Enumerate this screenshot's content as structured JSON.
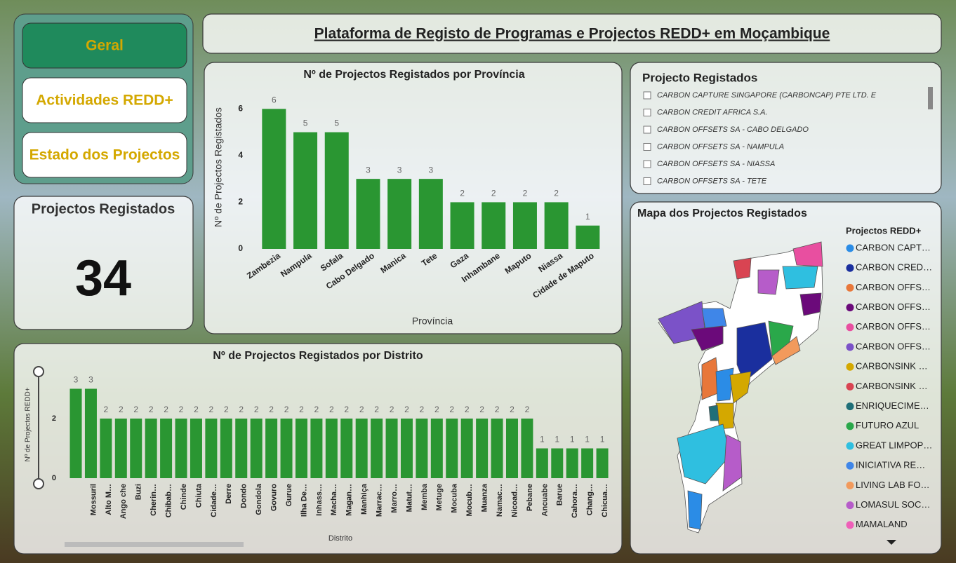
{
  "header": {
    "title": "Plataforma de Registo de Programas e Projectos REDD+ em Moçambique"
  },
  "nav": [
    "Geral",
    "Actividades REDD+",
    "Estado dos Projectos"
  ],
  "card": {
    "title": "Projectos Registados",
    "value": 34
  },
  "chart_data": [
    {
      "type": "bar",
      "title": "Nº de Projectos Registados por Província",
      "x_label": "Província",
      "y_label": "Nº de Projectos Registados",
      "categories": [
        "Zambezia",
        "Nampula",
        "Sofala",
        "Cabo Delgado",
        "Manica",
        "Tete",
        "Gaza",
        "Inhambane",
        "Maputo",
        "Niassa",
        "Cidade de Maputo"
      ],
      "values": [
        6,
        5,
        5,
        3,
        3,
        3,
        2,
        2,
        2,
        2,
        1
      ],
      "color": "#2a9632",
      "ylim": [
        0,
        7
      ],
      "yticks": [
        0,
        2,
        4,
        6
      ]
    },
    {
      "type": "bar",
      "title": "Nº de Projectos Registados por Distrito",
      "x_label": "Distrito",
      "y_label": "Nº de Projectos REDD+",
      "categories": [
        null,
        "Mossuril",
        "Alto M…",
        "Ango che",
        "Buzi",
        "Cherin…",
        "Chibab…",
        "Chinde",
        "Chiuta",
        "Cidade…",
        "Derre",
        "Dondo",
        "Gondola",
        "Govuro",
        "Gurue",
        "Ilha De…",
        "Inhass…",
        "Macha…",
        "Magan…",
        "Manhiça",
        "Marrac…",
        "Marro…",
        "Matut…",
        "Memba",
        "Metuge",
        "Mocuba",
        "Mocub…",
        "Muanza",
        "Namac…",
        "Nicoad…",
        "Pebane",
        "Ancuabe",
        "Barue",
        "Cahora…",
        "Chang…",
        "Chicua…"
      ],
      "values": [
        3,
        3,
        2,
        2,
        2,
        2,
        2,
        2,
        2,
        2,
        2,
        2,
        2,
        2,
        2,
        2,
        2,
        2,
        2,
        2,
        2,
        2,
        2,
        2,
        2,
        2,
        2,
        2,
        2,
        2,
        2,
        1,
        1,
        1,
        1,
        1
      ],
      "color": "#2a9632",
      "ylim": [
        0,
        3.6
      ],
      "yticks": [
        0,
        2
      ]
    }
  ],
  "slicer": {
    "title": "Projecto Registados",
    "items": [
      "CARBON CAPTURE SINGAPORE (CARBONCAP) PTE LTD. E",
      "CARBON CREDIT AFRICA S.A.",
      "CARBON OFFSETS SA - CABO DELGADO",
      "CARBON OFFSETS SA - NAMPULA",
      "CARBON OFFSETS SA - NIASSA",
      "CARBON OFFSETS SA - TETE"
    ]
  },
  "map": {
    "title": "Mapa dos Projectos Registados",
    "legend_title": "Projectos REDD+",
    "legend": [
      {
        "name": "CARBON CAPT…",
        "color": "#2b8ce6"
      },
      {
        "name": "CARBON CRED…",
        "color": "#1a2f9e"
      },
      {
        "name": "CARBON OFFS…",
        "color": "#e8773a"
      },
      {
        "name": "CARBON OFFS…",
        "color": "#6b0a7a"
      },
      {
        "name": "CARBON OFFS…",
        "color": "#e84fa0"
      },
      {
        "name": "CARBON OFFS…",
        "color": "#7b52c8"
      },
      {
        "name": "CARBONSINK …",
        "color": "#d4a800"
      },
      {
        "name": "CARBONSINK …",
        "color": "#d94452"
      },
      {
        "name": "ENRIQUECIME…",
        "color": "#1f6f78"
      },
      {
        "name": "FUTURO AZUL",
        "color": "#2aa84a"
      },
      {
        "name": "GREAT LIMPOP…",
        "color": "#2fbfe0"
      },
      {
        "name": "INICIATIVA RE…",
        "color": "#3f86e8"
      },
      {
        "name": "LIVING LAB FO…",
        "color": "#f29a5c"
      },
      {
        "name": "LOMASUL SOC…",
        "color": "#b65cc9"
      },
      {
        "name": "MAMALAND",
        "color": "#ee5fb8"
      }
    ]
  }
}
